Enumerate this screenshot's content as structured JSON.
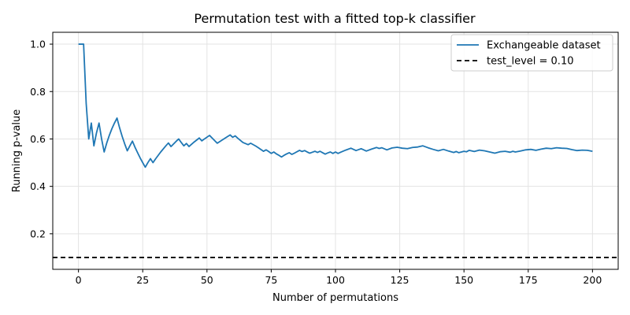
{
  "chart_data": {
    "type": "line",
    "title": "Permutation test with a fitted top-k classifier",
    "xlabel": "Number of permutations",
    "ylabel": "Running p-value",
    "xlim": [
      -10,
      210
    ],
    "ylim": [
      0.05,
      1.05
    ],
    "xticks": [
      0,
      25,
      50,
      75,
      100,
      125,
      150,
      175,
      200
    ],
    "yticks": [
      0.2,
      0.4,
      0.6,
      0.8,
      1.0
    ],
    "xtick_labels": [
      "0",
      "25",
      "50",
      "75",
      "100",
      "125",
      "150",
      "175",
      "200"
    ],
    "ytick_labels": [
      "0.2",
      "0.4",
      "0.6",
      "0.8",
      "1.0"
    ],
    "grid": true,
    "legend": "top-right",
    "series": [
      {
        "name": "Exchangeable dataset",
        "color": "#1f77b4",
        "style": "solid",
        "x": [
          0,
          1,
          2,
          3,
          4,
          5,
          6,
          7,
          8,
          9,
          10,
          11,
          12,
          13,
          14,
          15,
          16,
          17,
          18,
          19,
          20,
          21,
          22,
          23,
          24,
          25,
          26,
          27,
          28,
          29,
          30,
          32,
          34,
          35,
          36,
          38,
          39,
          40,
          41,
          42,
          43,
          45,
          47,
          48,
          49,
          51,
          52,
          54,
          55,
          57,
          59,
          60,
          61,
          62,
          64,
          66,
          67,
          69,
          70,
          72,
          73,
          74,
          75,
          76,
          77,
          78,
          79,
          80,
          81,
          82,
          83,
          84,
          86,
          87,
          88,
          89,
          90,
          91,
          92,
          93,
          94,
          95,
          96,
          97,
          98,
          99,
          100,
          101,
          102,
          104,
          106,
          108,
          110,
          112,
          114,
          116,
          117,
          118,
          120,
          122,
          124,
          126,
          128,
          130,
          132,
          134,
          136,
          138,
          140,
          142,
          144,
          146,
          147,
          148,
          150,
          151,
          152,
          154,
          156,
          158,
          160,
          162,
          164,
          166,
          168,
          169,
          170,
          172,
          174,
          176,
          178,
          180,
          182,
          184,
          186,
          188,
          190,
          192,
          194,
          196,
          198,
          200
        ],
        "y": [
          1.0,
          1.0,
          1.0,
          0.75,
          0.6,
          0.667,
          0.571,
          0.625,
          0.667,
          0.6,
          0.545,
          0.583,
          0.615,
          0.643,
          0.667,
          0.688,
          0.647,
          0.611,
          0.579,
          0.55,
          0.571,
          0.591,
          0.565,
          0.542,
          0.52,
          0.5,
          0.481,
          0.5,
          0.517,
          0.5,
          0.516,
          0.545,
          0.571,
          0.583,
          0.568,
          0.59,
          0.6,
          0.585,
          0.571,
          0.581,
          0.568,
          0.587,
          0.604,
          0.592,
          0.6,
          0.615,
          0.604,
          0.582,
          0.589,
          0.603,
          0.617,
          0.607,
          0.613,
          0.603,
          0.585,
          0.576,
          0.582,
          0.57,
          0.563,
          0.548,
          0.554,
          0.547,
          0.539,
          0.545,
          0.537,
          0.531,
          0.524,
          0.531,
          0.537,
          0.542,
          0.535,
          0.54,
          0.552,
          0.547,
          0.551,
          0.545,
          0.54,
          0.544,
          0.548,
          0.543,
          0.548,
          0.542,
          0.536,
          0.541,
          0.545,
          0.539,
          0.545,
          0.539,
          0.544,
          0.553,
          0.561,
          0.551,
          0.559,
          0.549,
          0.557,
          0.564,
          0.56,
          0.563,
          0.554,
          0.562,
          0.565,
          0.561,
          0.559,
          0.564,
          0.566,
          0.571,
          0.563,
          0.556,
          0.55,
          0.556,
          0.549,
          0.543,
          0.547,
          0.542,
          0.548,
          0.546,
          0.552,
          0.547,
          0.553,
          0.55,
          0.545,
          0.54,
          0.546,
          0.548,
          0.544,
          0.548,
          0.545,
          0.549,
          0.554,
          0.556,
          0.552,
          0.557,
          0.561,
          0.559,
          0.563,
          0.561,
          0.56,
          0.555,
          0.551,
          0.553,
          0.552,
          0.548
        ]
      },
      {
        "name": "test_level = 0.10",
        "color": "#000000",
        "style": "dashed",
        "y_constant": 0.1
      }
    ]
  }
}
